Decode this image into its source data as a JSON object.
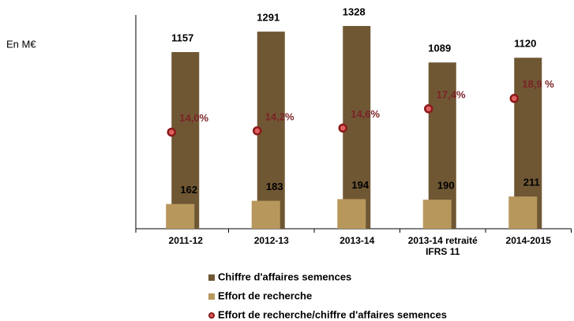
{
  "chart_data": {
    "type": "bar",
    "unit_label": "En M€",
    "categories": [
      "2011-12",
      "2012-13",
      "2013-14",
      "2013-14 retraité IFRS 11",
      "2014-2015"
    ],
    "ylim": [
      0,
      1400
    ],
    "y2lim": [
      0,
      31
    ],
    "series": [
      {
        "name": "Chiffre d'affaires semences",
        "color": "#6f5734",
        "values": [
          1157,
          1291,
          1328,
          1089,
          1120
        ]
      },
      {
        "name": "Effort de recherche",
        "color": "#b8975c",
        "values": [
          162,
          183,
          194,
          190,
          211
        ]
      },
      {
        "name": "Effort de recherche/chiffre d'affaires semences",
        "color": "#8b1a1a",
        "type": "scatter",
        "axis": "y2",
        "values": [
          14.0,
          14.2,
          14.6,
          17.4,
          18.9
        ],
        "value_labels": [
          "14,0%",
          "14,2%",
          "14,6%",
          "17,4%",
          "18,9 %"
        ]
      }
    ]
  }
}
